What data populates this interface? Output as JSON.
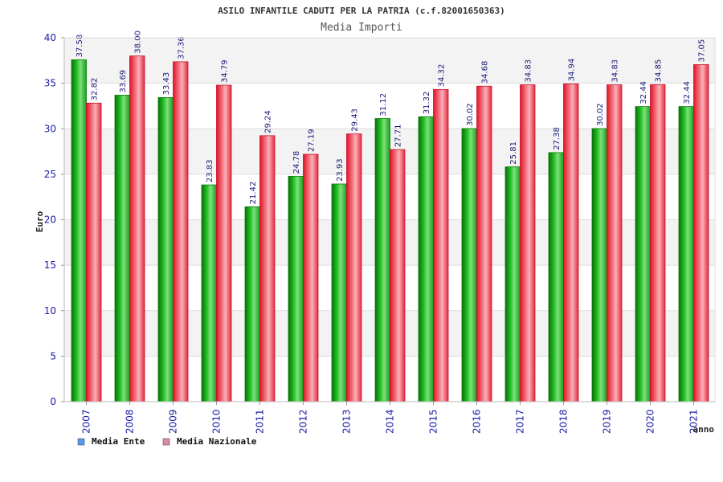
{
  "chart_data": {
    "type": "bar",
    "title": "ASILO INFANTILE CADUTI PER LA PATRIA (c.f.82001650363)",
    "subtitle": "Media Importi",
    "xlabel": "anno",
    "ylabel": "Euro",
    "ylim": [
      0,
      40
    ],
    "yticks": [
      0,
      5,
      10,
      15,
      20,
      25,
      30,
      35,
      40
    ],
    "categories": [
      "2007",
      "2008",
      "2009",
      "2010",
      "2011",
      "2012",
      "2013",
      "2014",
      "2015",
      "2016",
      "2017",
      "2018",
      "2019",
      "2020",
      "2021"
    ],
    "series": [
      {
        "name": "Media Ente",
        "color": "#1faa1f",
        "legend_color": "#5599ee",
        "values": [
          37.58,
          33.69,
          33.43,
          23.83,
          21.42,
          24.78,
          23.93,
          31.12,
          31.32,
          30.02,
          25.81,
          27.38,
          30.02,
          32.44,
          32.44
        ],
        "labels": [
          "37.58",
          "33.69",
          "33.43",
          "23.83",
          "21.42",
          "24.78",
          "23.93",
          "31.12",
          "31.32",
          "30.02",
          "25.81",
          "27.38",
          "30.02",
          "32.44",
          "32.44"
        ]
      },
      {
        "name": "Media Nazionale",
        "color": "#e8283a",
        "legend_color": "#dd88aa",
        "values": [
          32.82,
          38.0,
          37.36,
          34.79,
          29.24,
          27.19,
          29.43,
          27.71,
          34.32,
          34.68,
          34.83,
          34.94,
          34.83,
          34.85,
          37.05
        ],
        "labels": [
          "32.82",
          "38.00",
          "37.36",
          "34.79",
          "29.24",
          "27.19",
          "29.43",
          "27.71",
          "34.32",
          "34.68",
          "34.83",
          "34.94",
          "34.83",
          "34.85",
          "37.05"
        ]
      }
    ],
    "grid": true,
    "legend_position": "bottom-left"
  }
}
